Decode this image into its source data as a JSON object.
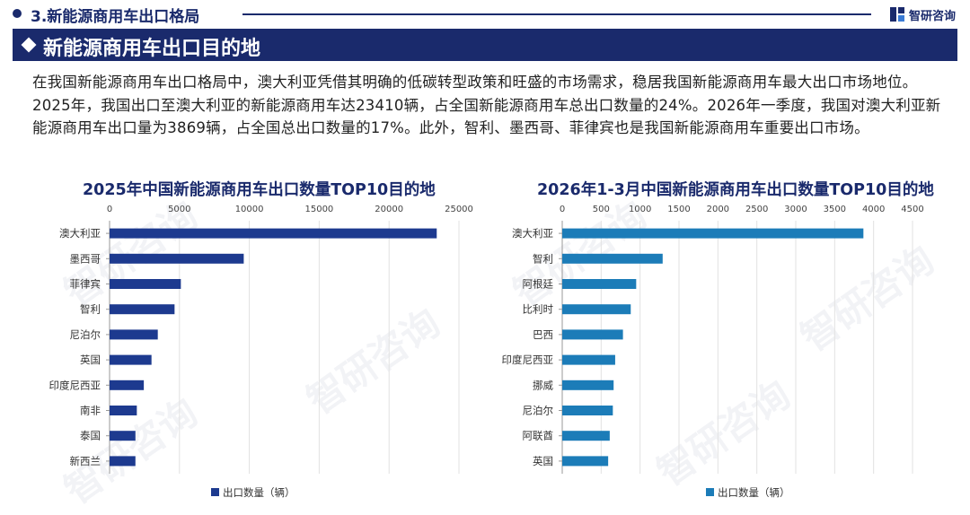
{
  "header": {
    "section_title": "3.新能源商用车出口格局",
    "logo_text": "智研咨询"
  },
  "banner": {
    "title": "新能源商用车出口目的地"
  },
  "intro": "在我国新能源商用车出口格局中，澳大利亚凭借其明确的低碳转型政策和旺盛的市场需求，稳居我国新能源商用车最大出口市场地位。2025年，我国出口至澳大利亚的新能源商用车达23410辆，占全国新能源商用车总出口数量的24%。2026年一季度，我国对澳大利亚新能源商用车出口量为3869辆，占全国总出口数量的17%。此外，智利、墨西哥、菲律宾也是我国新能源商用车重要出口市场。",
  "watermark": "智研咨询",
  "colors": {
    "brand": "#1a2a6c",
    "bar_left": "#1d3a8f",
    "bar_right": "#1c7cb8"
  },
  "chart_data": [
    {
      "type": "bar",
      "orientation": "horizontal",
      "title": "2025年中国新能源商用车出口数量TOP10目的地",
      "categories": [
        "澳大利亚",
        "墨西哥",
        "菲律宾",
        "智利",
        "尼泊尔",
        "英国",
        "印度尼西亚",
        "南非",
        "泰国",
        "新西兰"
      ],
      "series": [
        {
          "name": "出口数量（辆）",
          "values": [
            23410,
            9600,
            5100,
            4650,
            3450,
            3000,
            2450,
            1950,
            1850,
            1850
          ]
        }
      ],
      "xlim": [
        0,
        25000
      ],
      "xticks": [
        0,
        5000,
        10000,
        15000,
        20000,
        25000
      ],
      "grid": true,
      "legend": "bottom"
    },
    {
      "type": "bar",
      "orientation": "horizontal",
      "title": "2026年1-3月中国新能源商用车出口数量TOP10目的地",
      "categories": [
        "澳大利亚",
        "智利",
        "阿根廷",
        "比利时",
        "巴西",
        "印度尼西亚",
        "挪威",
        "尼泊尔",
        "阿联酋",
        "英国"
      ],
      "series": [
        {
          "name": "出口数量（辆）",
          "values": [
            3869,
            1290,
            950,
            880,
            780,
            680,
            660,
            650,
            610,
            590
          ]
        }
      ],
      "xlim": [
        0,
        4500
      ],
      "xticks": [
        0,
        500,
        1000,
        1500,
        2000,
        2500,
        3000,
        3500,
        4000,
        4500
      ],
      "grid": true,
      "legend": "bottom"
    }
  ]
}
